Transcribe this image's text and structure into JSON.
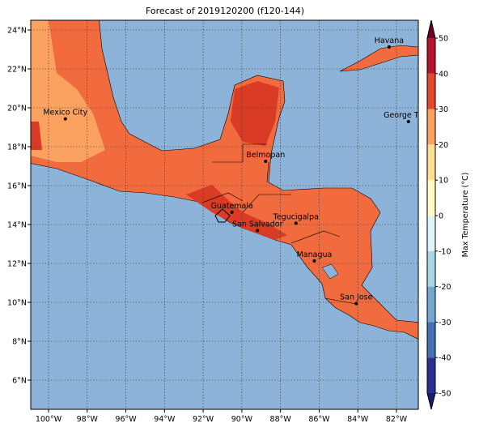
{
  "title": "Forecast of 2019120200 (f120-144)",
  "map": {
    "lon_range": [
      -100.92,
      -80.87
    ],
    "lat_range": [
      4.5,
      24.5
    ],
    "lon_ticks": [
      {
        "value": -100,
        "label": "100°W"
      },
      {
        "value": -98,
        "label": "98°W"
      },
      {
        "value": -96,
        "label": "96°W"
      },
      {
        "value": -94,
        "label": "94°W"
      },
      {
        "value": -92,
        "label": "92°W"
      },
      {
        "value": -90,
        "label": "90°W"
      },
      {
        "value": -88,
        "label": "88°W"
      },
      {
        "value": -86,
        "label": "86°W"
      },
      {
        "value": -84,
        "label": "84°W"
      },
      {
        "value": -82,
        "label": "82°W"
      }
    ],
    "lat_ticks": [
      {
        "value": 6,
        "label": "6°N"
      },
      {
        "value": 8,
        "label": "8°N"
      },
      {
        "value": 10,
        "label": "10°N"
      },
      {
        "value": 12,
        "label": "12°N"
      },
      {
        "value": 14,
        "label": "14°N"
      },
      {
        "value": 16,
        "label": "16°N"
      },
      {
        "value": 18,
        "label": "18°N"
      },
      {
        "value": 20,
        "label": "20°N"
      },
      {
        "value": 22,
        "label": "22°N"
      },
      {
        "value": 24,
        "label": "24°N"
      }
    ],
    "cities": [
      {
        "name": "Mexico City",
        "lon": -99.13,
        "lat": 19.43
      },
      {
        "name": "Havana",
        "lon": -82.38,
        "lat": 23.13
      },
      {
        "name": "George Town",
        "lon": -81.38,
        "lat": 19.29
      },
      {
        "name": "Belmopan",
        "lon": -88.77,
        "lat": 17.25
      },
      {
        "name": "Guatemala",
        "lon": -90.51,
        "lat": 14.63
      },
      {
        "name": "San Salvador",
        "lon": -89.19,
        "lat": 13.69
      },
      {
        "name": "Tegucigalpa",
        "lon": -87.2,
        "lat": 14.07
      },
      {
        "name": "Managua",
        "lon": -86.25,
        "lat": 12.13
      },
      {
        "name": "San Jose",
        "lon": -84.08,
        "lat": 9.93
      }
    ]
  },
  "colorbar": {
    "label": "Max Temperature (°C)",
    "ticks": [
      -50,
      -40,
      -30,
      -20,
      -10,
      0,
      10,
      20,
      30,
      40,
      50
    ],
    "colors": [
      "#2b2f8f",
      "#4270b0",
      "#72a8cf",
      "#abd6e8",
      "#e2f3f8",
      "#fffcc4",
      "#fedf94",
      "#fca260",
      "#e5472c",
      "#b5142a"
    ],
    "under_color": "#1a1a70",
    "over_color": "#6d0023"
  }
}
